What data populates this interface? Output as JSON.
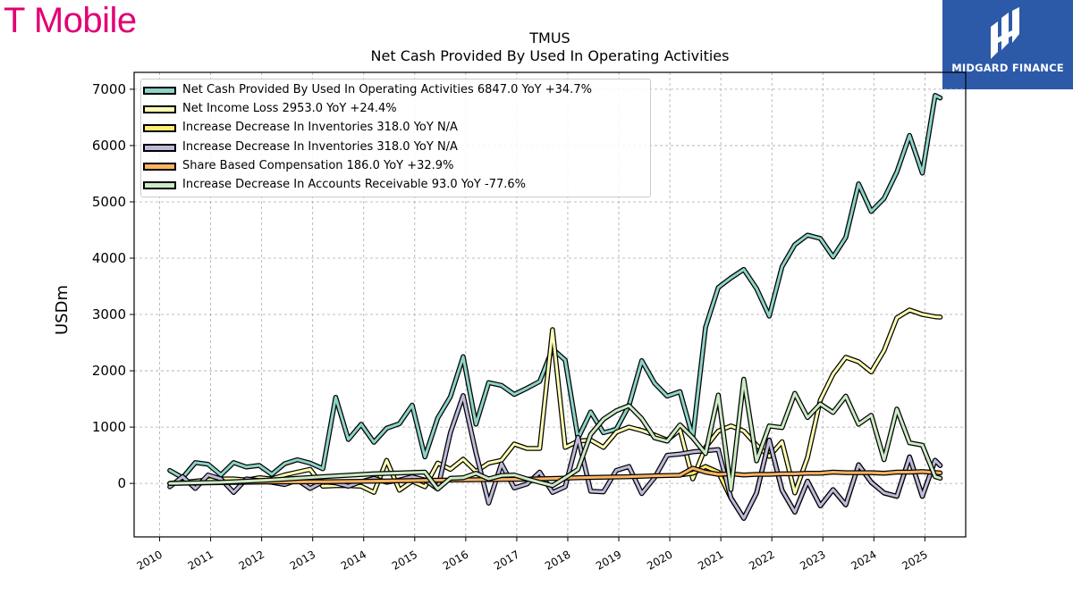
{
  "brand": {
    "name": "T Mobile",
    "color": "#e20074"
  },
  "badge": {
    "text": "MIDGARD FINANCE",
    "color": "#2d5aa8",
    "icon": "midgard-logo-icon"
  },
  "chart_data": {
    "type": "line",
    "title": "TMUS",
    "subtitle": "Net Cash Provided By Used In Operating Activities",
    "ylabel": "USDm",
    "xlabel": "",
    "ylim": [
      -950,
      7300
    ],
    "xlim": [
      2009.5,
      2025.8
    ],
    "yticks": [
      0,
      1000,
      2000,
      3000,
      4000,
      5000,
      6000,
      7000
    ],
    "xticks": [
      "2010",
      "2011",
      "2012",
      "2013",
      "2014",
      "2015",
      "2016",
      "2017",
      "2018",
      "2019",
      "2020",
      "2021",
      "2022",
      "2023",
      "2024",
      "2025"
    ],
    "grid": true,
    "legend_position": "upper-left",
    "series": [
      {
        "name": "Net Cash Provided By Used In Operating Activities",
        "legend": "Net Cash Provided By Used In Operating Activities  6847.0 YoY +34.7%",
        "color": "#8dd3c7",
        "x": [
          2010.2,
          2010.45,
          2010.7,
          2010.95,
          2011.2,
          2011.45,
          2011.7,
          2011.95,
          2012.2,
          2012.45,
          2012.7,
          2012.95,
          2013.2,
          2013.45,
          2013.7,
          2013.95,
          2014.2,
          2014.45,
          2014.7,
          2014.95,
          2015.2,
          2015.45,
          2015.7,
          2015.95,
          2016.2,
          2016.45,
          2016.7,
          2016.95,
          2017.2,
          2017.45,
          2017.7,
          2017.95,
          2018.2,
          2018.45,
          2018.7,
          2018.95,
          2019.2,
          2019.45,
          2019.7,
          2019.95,
          2020.2,
          2020.45,
          2020.7,
          2020.95,
          2021.2,
          2021.45,
          2021.7,
          2021.95,
          2022.2,
          2022.45,
          2022.7,
          2022.95,
          2023.2,
          2023.45,
          2023.7,
          2023.95,
          2024.2,
          2024.45,
          2024.7,
          2024.95,
          2025.2,
          2025.3
        ],
        "values": [
          230,
          100,
          370,
          340,
          150,
          370,
          290,
          320,
          160,
          350,
          420,
          360,
          260,
          1530,
          780,
          1050,
          730,
          980,
          1060,
          1390,
          470,
          1160,
          1540,
          2250,
          1050,
          1790,
          1740,
          1580,
          1690,
          1810,
          2390,
          2190,
          800,
          1270,
          900,
          960,
          1380,
          2180,
          1780,
          1550,
          1630,
          820,
          2770,
          3480,
          3650,
          3800,
          3460,
          2970,
          3850,
          4240,
          4410,
          4350,
          4020,
          4370,
          5320,
          4830,
          5060,
          5530,
          6180,
          5510,
          6890,
          6847
        ]
      },
      {
        "name": "Net Income Loss",
        "legend": "Net Income Loss  2953.0 YoY +24.4%",
        "color": "#ffffb3",
        "x": [
          2010.2,
          2010.45,
          2010.7,
          2010.95,
          2011.2,
          2011.45,
          2011.7,
          2011.95,
          2012.2,
          2012.45,
          2012.7,
          2012.95,
          2013.2,
          2013.45,
          2013.7,
          2013.95,
          2014.2,
          2014.45,
          2014.7,
          2014.95,
          2015.2,
          2015.45,
          2015.7,
          2015.95,
          2016.2,
          2016.45,
          2016.7,
          2016.95,
          2017.2,
          2017.45,
          2017.7,
          2017.95,
          2018.2,
          2018.45,
          2018.7,
          2018.95,
          2019.2,
          2019.45,
          2019.7,
          2019.95,
          2020.2,
          2020.45,
          2020.7,
          2020.95,
          2021.2,
          2021.45,
          2021.7,
          2021.95,
          2022.2,
          2022.45,
          2022.7,
          2022.95,
          2023.2,
          2023.45,
          2023.7,
          2023.95,
          2024.2,
          2024.45,
          2024.7,
          2024.95,
          2025.2,
          2025.3
        ],
        "values": [
          0,
          20,
          40,
          60,
          80,
          80,
          60,
          100,
          80,
          150,
          200,
          250,
          -50,
          -40,
          -40,
          -50,
          -160,
          410,
          -120,
          40,
          -60,
          360,
          250,
          430,
          210,
          360,
          410,
          700,
          620,
          620,
          2730,
          640,
          750,
          770,
          640,
          910,
          1000,
          940,
          860,
          770,
          950,
          80,
          640,
          930,
          1020,
          930,
          680,
          480,
          740,
          -170,
          460,
          1480,
          1940,
          2240,
          2160,
          1980,
          2360,
          2940,
          3080,
          3000,
          2960,
          2953
        ]
      },
      {
        "name": "Increase Decrease In Inventories",
        "legend": "Increase Decrease In Inventories  318.0 YoY N/A",
        "color": "#ffed6f",
        "x": [
          2020.2,
          2020.45,
          2020.7,
          2020.95,
          2021.2,
          2021.45,
          2021.7,
          2021.95,
          2022.2,
          2022.45,
          2022.7,
          2022.95,
          2023.2,
          2023.45,
          2023.7,
          2023.95,
          2024.2,
          2024.45,
          2024.7,
          2024.95,
          2025.2,
          2025.3
        ],
        "values": [
          150,
          180,
          300,
          200,
          -260,
          -620,
          -170,
          770,
          -120,
          -510,
          40,
          -400,
          -110,
          -380,
          330,
          20,
          -170,
          -230,
          470,
          -230,
          410,
          318
        ]
      },
      {
        "name": "Increase Decrease In Inventories",
        "legend": "Increase Decrease In Inventories  318.0 YoY N/A",
        "color": "#bebada",
        "x": [
          2010.2,
          2010.45,
          2010.7,
          2010.95,
          2011.2,
          2011.45,
          2011.7,
          2011.95,
          2012.2,
          2012.45,
          2012.7,
          2012.95,
          2013.2,
          2013.45,
          2013.7,
          2013.95,
          2014.2,
          2014.45,
          2014.7,
          2014.95,
          2015.2,
          2015.45,
          2015.7,
          2015.95,
          2016.2,
          2016.45,
          2016.7,
          2016.95,
          2017.2,
          2017.45,
          2017.7,
          2017.95,
          2018.2,
          2018.45,
          2018.7,
          2018.95,
          2019.2,
          2019.45,
          2019.7,
          2019.95,
          2020.2,
          2020.45,
          2020.7,
          2020.95,
          2021.2,
          2021.45,
          2021.7,
          2021.95,
          2022.2,
          2022.45,
          2022.7,
          2022.95,
          2023.2,
          2023.45,
          2023.7,
          2023.95,
          2024.2,
          2024.45,
          2024.7,
          2024.95,
          2025.2,
          2025.3
        ],
        "values": [
          -60,
          120,
          -90,
          150,
          80,
          -160,
          80,
          50,
          20,
          -20,
          60,
          -90,
          30,
          10,
          -50,
          30,
          90,
          20,
          60,
          120,
          60,
          -100,
          900,
          1560,
          540,
          -350,
          350,
          -80,
          -10,
          200,
          -160,
          -60,
          820,
          -140,
          -150,
          230,
          300,
          -180,
          100,
          500,
          520,
          560,
          580,
          600,
          -260,
          -620,
          -170,
          770,
          -120,
          -510,
          40,
          -400,
          -110,
          -380,
          330,
          20,
          -170,
          -230,
          470,
          -230,
          410,
          318
        ]
      },
      {
        "name": "Share Based Compensation",
        "legend": "Share Based Compensation  186.0 YoY +32.9%",
        "color": "#fdb462",
        "x": [
          2010.2,
          2011.2,
          2012.2,
          2013.2,
          2014.2,
          2015.2,
          2016.2,
          2017.2,
          2018.2,
          2019.2,
          2019.7,
          2020.2,
          2020.45,
          2020.7,
          2020.95,
          2021.2,
          2021.45,
          2021.7,
          2021.95,
          2022.2,
          2022.45,
          2022.7,
          2022.95,
          2023.2,
          2023.45,
          2023.7,
          2023.95,
          2024.2,
          2024.45,
          2024.7,
          2024.95,
          2025.3
        ],
        "values": [
          0,
          15,
          25,
          30,
          40,
          55,
          65,
          75,
          100,
          120,
          135,
          145,
          270,
          200,
          160,
          170,
          150,
          160,
          160,
          170,
          170,
          180,
          180,
          200,
          190,
          190,
          190,
          180,
          200,
          200,
          210,
          186
        ]
      },
      {
        "name": "Increase Decrease In Accounts Receivable",
        "legend": "Increase Decrease In Accounts Receivable  93.0 YoY -77.6%",
        "color": "#ccebc5",
        "x": [
          2010.2,
          2011.2,
          2012.2,
          2013.2,
          2014.2,
          2015.2,
          2015.45,
          2015.7,
          2015.95,
          2016.2,
          2016.45,
          2016.7,
          2016.95,
          2017.2,
          2017.45,
          2017.7,
          2017.95,
          2018.2,
          2018.45,
          2018.7,
          2018.95,
          2019.2,
          2019.45,
          2019.7,
          2019.95,
          2020.2,
          2020.45,
          2020.7,
          2020.95,
          2021.2,
          2021.45,
          2021.7,
          2021.95,
          2022.2,
          2022.45,
          2022.7,
          2022.95,
          2023.2,
          2023.45,
          2023.7,
          2023.95,
          2024.2,
          2024.45,
          2024.7,
          2024.95,
          2025.2,
          2025.3
        ],
        "values": [
          0,
          20,
          60,
          120,
          170,
          200,
          -100,
          90,
          100,
          180,
          80,
          140,
          150,
          80,
          20,
          -40,
          100,
          250,
          870,
          1140,
          1290,
          1380,
          1150,
          810,
          750,
          1040,
          810,
          530,
          1570,
          -110,
          1850,
          400,
          1020,
          990,
          1600,
          1170,
          1410,
          1260,
          1550,
          1050,
          1210,
          420,
          1320,
          720,
          680,
          120,
          93
        ]
      }
    ]
  }
}
